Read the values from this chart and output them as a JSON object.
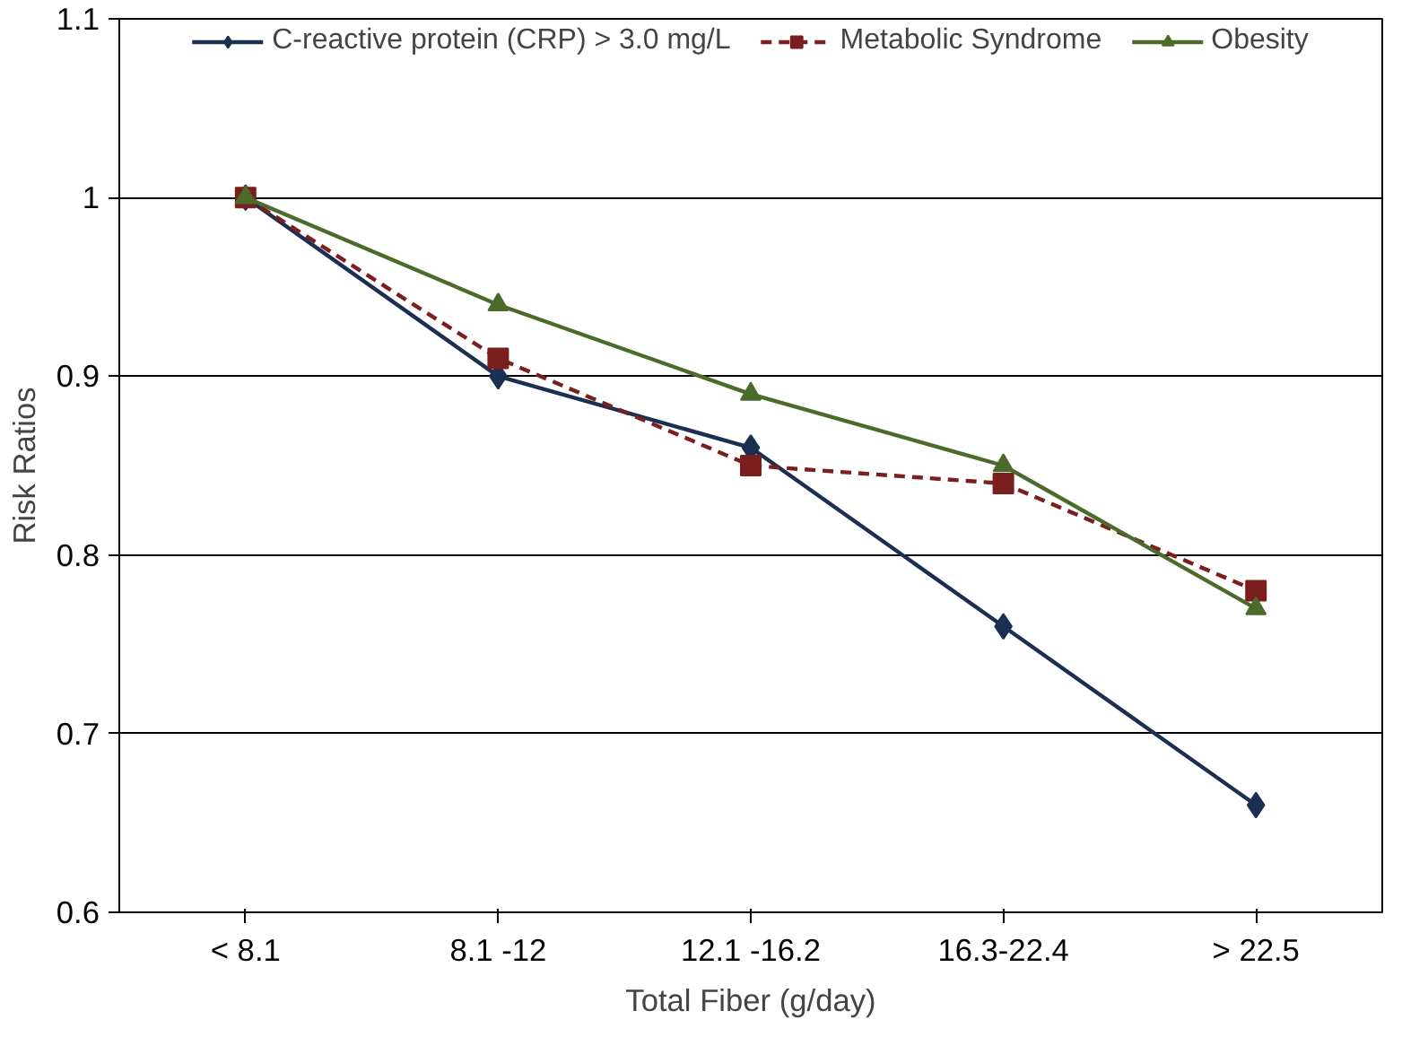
{
  "chart_data": {
    "type": "line",
    "xlabel": "Total Fiber (g/day)",
    "ylabel": "Risk Ratios",
    "categories": [
      "< 8.1",
      "8.1 -12",
      "12.1 -16.2",
      "16.3-22.4",
      "> 22.5"
    ],
    "series": [
      {
        "name": "C-reactive protein (CRP) > 3.0 mg/L",
        "color": "#1b2f52",
        "values": [
          1,
          0.9,
          0.86,
          0.76,
          0.66
        ],
        "marker": "diamond",
        "line_style": "solid"
      },
      {
        "name": "Metabolic Syndrome",
        "color": "#7a1e1e",
        "values": [
          1,
          0.91,
          0.85,
          0.84,
          0.78
        ],
        "marker": "square",
        "line_style": "dashed"
      },
      {
        "name": "Obesity",
        "color": "#4b6b2b",
        "values": [
          1,
          0.94,
          0.89,
          0.85,
          0.77
        ],
        "marker": "triangle",
        "line_style": "solid"
      }
    ],
    "ylim": [
      0.6,
      1.1
    ],
    "yticks": [
      0.6,
      0.7,
      0.8,
      0.9,
      1,
      1.1
    ],
    "grid": "y",
    "legend": "top"
  }
}
